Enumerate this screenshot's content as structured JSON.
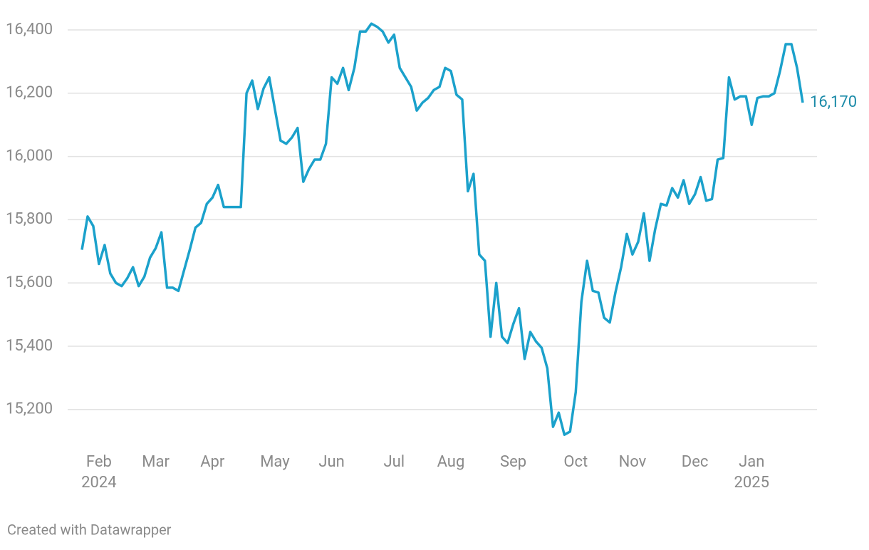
{
  "chart_data": {
    "type": "line",
    "footer": "Created with Datawrapper",
    "categories": [
      null,
      null,
      null,
      "Feb 2024",
      null,
      null,
      null,
      null,
      null,
      null,
      null,
      null,
      null,
      "Mar",
      null,
      null,
      null,
      null,
      null,
      null,
      null,
      null,
      null,
      "Apr",
      null,
      null,
      null,
      null,
      null,
      null,
      null,
      null,
      null,
      null,
      "May",
      null,
      null,
      null,
      null,
      null,
      null,
      null,
      null,
      null,
      "Jun",
      null,
      null,
      null,
      null,
      null,
      null,
      null,
      null,
      null,
      null,
      "Jul",
      null,
      null,
      null,
      null,
      null,
      null,
      null,
      null,
      null,
      "Aug",
      null,
      null,
      null,
      null,
      null,
      null,
      null,
      null,
      null,
      null,
      "Sep",
      null,
      null,
      null,
      null,
      null,
      null,
      null,
      null,
      null,
      null,
      "Oct",
      null,
      null,
      null,
      null,
      null,
      null,
      null,
      null,
      null,
      "Nov",
      null,
      null,
      null,
      null,
      null,
      null,
      null,
      null,
      null,
      null,
      "Dec",
      null,
      null,
      null,
      null,
      null,
      null,
      null,
      null,
      null,
      "Jan 2025",
      null,
      null,
      null,
      null,
      null,
      null,
      null,
      null,
      null
    ],
    "series": [
      {
        "name": null,
        "color": "#1ba1cb",
        "label_color": "#1a8aa8",
        "values": [
          15705,
          15810,
          15780,
          15660,
          15720,
          15630,
          15600,
          15590,
          15615,
          15650,
          15590,
          15620,
          15680,
          15710,
          15760,
          15585,
          15585,
          15575,
          15640,
          15705,
          15775,
          15790,
          15850,
          15870,
          15910,
          15840,
          15840,
          15840,
          15840,
          16200,
          16240,
          16150,
          16215,
          16250,
          16150,
          16050,
          16040,
          16060,
          16090,
          15920,
          15960,
          15990,
          15990,
          16040,
          16250,
          16230,
          16280,
          16210,
          16280,
          16395,
          16395,
          16420,
          16410,
          16395,
          16360,
          16385,
          16280,
          16250,
          16220,
          16145,
          16170,
          16185,
          16210,
          16220,
          16280,
          16270,
          16195,
          16180,
          15890,
          15945,
          15690,
          15670,
          15430,
          15600,
          15430,
          15410,
          15470,
          15520,
          15360,
          15445,
          15415,
          15395,
          15330,
          15145,
          15190,
          15120,
          15130,
          15255,
          15540,
          15670,
          15575,
          15570,
          15490,
          15475,
          15570,
          15650,
          15755,
          15690,
          15730,
          15820,
          15670,
          15770,
          15850,
          15845,
          15900,
          15870,
          15925,
          15850,
          15880,
          15935,
          15860,
          15865,
          15990,
          15995,
          16250,
          16180,
          16190,
          16190,
          16100,
          16185,
          16190,
          16190,
          16200,
          16270,
          16355,
          16355,
          16280,
          16170
        ],
        "value_labels": [
          null,
          null,
          null,
          null,
          null,
          null,
          null,
          null,
          null,
          null,
          null,
          null,
          null,
          null,
          null,
          null,
          null,
          null,
          null,
          null,
          null,
          null,
          null,
          null,
          null,
          null,
          null,
          null,
          null,
          null,
          null,
          null,
          null,
          null,
          null,
          null,
          null,
          null,
          null,
          null,
          null,
          null,
          null,
          null,
          null,
          null,
          null,
          null,
          null,
          null,
          null,
          null,
          null,
          null,
          null,
          null,
          null,
          null,
          null,
          null,
          null,
          null,
          null,
          null,
          null,
          null,
          null,
          null,
          null,
          null,
          null,
          null,
          null,
          null,
          null,
          null,
          null,
          null,
          null,
          null,
          null,
          null,
          null,
          null,
          null,
          null,
          null,
          null,
          null,
          null,
          null,
          null,
          null,
          null,
          null,
          null,
          null,
          null,
          null,
          null,
          null,
          null,
          null,
          null,
          null,
          null,
          null,
          null,
          null,
          null,
          null,
          null,
          null,
          null,
          null,
          null,
          null,
          null,
          null,
          null,
          null,
          null,
          null,
          null,
          null,
          null,
          null,
          "16,170"
        ]
      }
    ],
    "ylim": [
      15080,
      16460
    ],
    "yticks": [
      {
        "value": 15200,
        "label": "15,200"
      },
      {
        "value": 15400,
        "label": "15,400"
      },
      {
        "value": 15600,
        "label": "15,600"
      },
      {
        "value": 15800,
        "label": "15,800"
      },
      {
        "value": 16000,
        "label": "16,000"
      },
      {
        "value": 16200,
        "label": "16,200"
      },
      {
        "value": 16400,
        "label": "16,400"
      }
    ],
    "grid": true
  }
}
